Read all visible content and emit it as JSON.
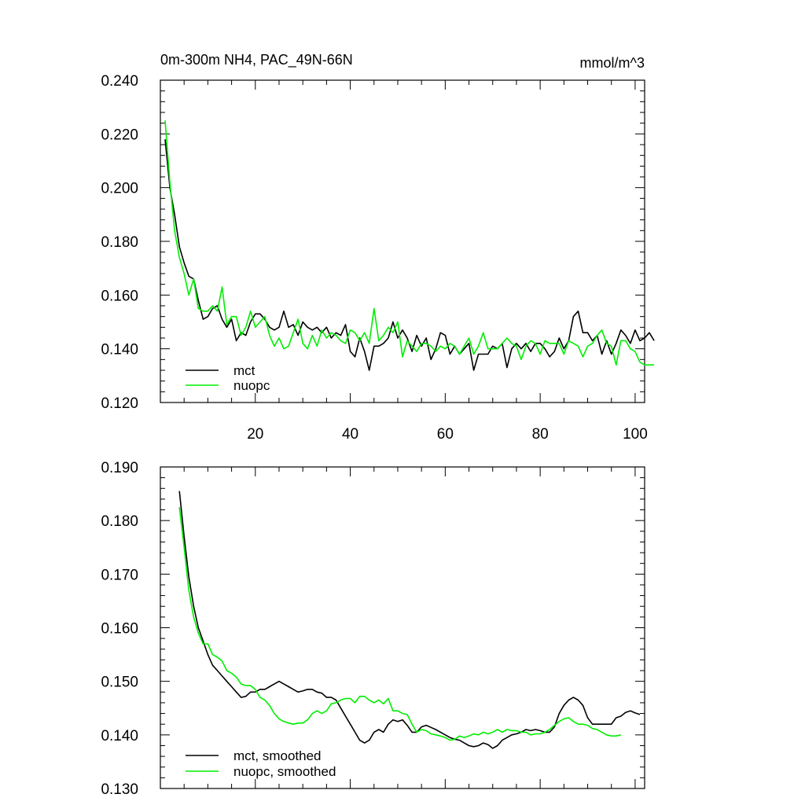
{
  "chart_data": [
    {
      "type": "line",
      "title": "0m-300m NH4, PAC_49N-66N",
      "units_label": "mmol/m^3",
      "xlim": [
        0,
        102
      ],
      "ylim": [
        0.12,
        0.24
      ],
      "yticks": [
        "0.120",
        "0.140",
        "0.160",
        "0.180",
        "0.200",
        "0.220",
        "0.240"
      ],
      "ytick_values": [
        0.12,
        0.14,
        0.16,
        0.18,
        0.2,
        0.22,
        0.24
      ],
      "xticks": [
        "20",
        "40",
        "60",
        "80",
        "100"
      ],
      "xtick_values": [
        20,
        40,
        60,
        80,
        100
      ],
      "legend": [
        "mct",
        "nuopc"
      ],
      "series": [
        {
          "name": "mct",
          "color": "#000000",
          "x_start": 1,
          "values": [
            0.218,
            0.2,
            0.19,
            0.178,
            0.172,
            0.167,
            0.166,
            0.158,
            0.151,
            0.152,
            0.155,
            0.156,
            0.151,
            0.148,
            0.151,
            0.143,
            0.146,
            0.145,
            0.15,
            0.153,
            0.153,
            0.151,
            0.148,
            0.147,
            0.148,
            0.154,
            0.148,
            0.149,
            0.145,
            0.15,
            0.148,
            0.147,
            0.148,
            0.146,
            0.148,
            0.144,
            0.146,
            0.145,
            0.149,
            0.139,
            0.137,
            0.144,
            0.139,
            0.132,
            0.141,
            0.141,
            0.142,
            0.144,
            0.15,
            0.144,
            0.147,
            0.144,
            0.139,
            0.145,
            0.141,
            0.144,
            0.136,
            0.14,
            0.146,
            0.145,
            0.138,
            0.141,
            0.138,
            0.14,
            0.142,
            0.132,
            0.138,
            0.138,
            0.138,
            0.141,
            0.14,
            0.142,
            0.133,
            0.14,
            0.142,
            0.14,
            0.142,
            0.139,
            0.142,
            0.142,
            0.14,
            0.137,
            0.139,
            0.144,
            0.14,
            0.143,
            0.152,
            0.154,
            0.146,
            0.146,
            0.143,
            0.145,
            0.138,
            0.143,
            0.138,
            0.142,
            0.147,
            0.145,
            0.142,
            0.147,
            0.143,
            0.144,
            0.146,
            0.143
          ]
        },
        {
          "name": "nuopc",
          "color": "#00ee00",
          "x_start": 1,
          "values": [
            0.225,
            0.202,
            0.184,
            0.174,
            0.168,
            0.16,
            0.166,
            0.155,
            0.154,
            0.154,
            0.156,
            0.154,
            0.163,
            0.149,
            0.152,
            0.152,
            0.145,
            0.148,
            0.154,
            0.148,
            0.15,
            0.152,
            0.145,
            0.141,
            0.144,
            0.14,
            0.141,
            0.146,
            0.151,
            0.142,
            0.14,
            0.145,
            0.141,
            0.147,
            0.144,
            0.146,
            0.145,
            0.143,
            0.142,
            0.147,
            0.146,
            0.143,
            0.146,
            0.142,
            0.155,
            0.143,
            0.145,
            0.148,
            0.146,
            0.15,
            0.137,
            0.143,
            0.141,
            0.139,
            0.142,
            0.142,
            0.141,
            0.139,
            0.141,
            0.14,
            0.142,
            0.141,
            0.138,
            0.141,
            0.144,
            0.138,
            0.141,
            0.146,
            0.14,
            0.14,
            0.14,
            0.142,
            0.144,
            0.142,
            0.141,
            0.136,
            0.141,
            0.143,
            0.142,
            0.138,
            0.143,
            0.142,
            0.142,
            0.142,
            0.138,
            0.143,
            0.142,
            0.141,
            0.137,
            0.141,
            0.142,
            0.145,
            0.147,
            0.142,
            0.141,
            0.134,
            0.143,
            0.143,
            0.14,
            0.139,
            0.135,
            0.134,
            0.134,
            0.134
          ]
        }
      ]
    },
    {
      "type": "line",
      "title": "",
      "units_label": "",
      "xlim": [
        0,
        102
      ],
      "ylim": [
        0.13,
        0.19
      ],
      "yticks": [
        "0.130",
        "0.140",
        "0.150",
        "0.160",
        "0.170",
        "0.180",
        "0.190"
      ],
      "ytick_values": [
        0.13,
        0.14,
        0.15,
        0.16,
        0.17,
        0.18,
        0.19
      ],
      "xticks": [],
      "xtick_values": [
        20,
        40,
        60,
        80,
        100
      ],
      "legend": [
        "mct, smoothed",
        "nuopc, smoothed"
      ],
      "series": [
        {
          "name": "mct, smoothed",
          "color": "#000000",
          "x_start": 4,
          "values": [
            0.1855,
            0.177,
            0.1695,
            0.164,
            0.16,
            0.1575,
            0.155,
            0.153,
            0.152,
            0.151,
            0.15,
            0.149,
            0.148,
            0.147,
            0.1472,
            0.148,
            0.148,
            0.1485,
            0.1485,
            0.149,
            0.1495,
            0.15,
            0.1495,
            0.149,
            0.1485,
            0.148,
            0.1482,
            0.1485,
            0.1485,
            0.148,
            0.1478,
            0.147,
            0.147,
            0.1465,
            0.145,
            0.1435,
            0.142,
            0.1405,
            0.139,
            0.1385,
            0.139,
            0.1405,
            0.141,
            0.1405,
            0.142,
            0.1428,
            0.1425,
            0.1428,
            0.1418,
            0.1405,
            0.1405,
            0.1415,
            0.1418,
            0.1414,
            0.141,
            0.1405,
            0.14,
            0.1395,
            0.1392,
            0.139,
            0.1385,
            0.138,
            0.1378,
            0.138,
            0.1385,
            0.1382,
            0.1375,
            0.138,
            0.139,
            0.1395,
            0.14,
            0.1402,
            0.1405,
            0.141,
            0.1408,
            0.141,
            0.1408,
            0.1405,
            0.1405,
            0.1415,
            0.144,
            0.1455,
            0.1465,
            0.147,
            0.1465,
            0.1455,
            0.1432,
            0.142,
            0.142,
            0.142,
            0.142,
            0.142,
            0.1432,
            0.1435,
            0.1442,
            0.1445,
            0.1441,
            0.1438
          ]
        },
        {
          "name": "nuopc, smoothed",
          "color": "#00ee00",
          "x_start": 4,
          "values": [
            0.1825,
            0.175,
            0.167,
            0.162,
            0.159,
            0.157,
            0.157,
            0.155,
            0.1545,
            0.1538,
            0.152,
            0.1515,
            0.1508,
            0.1495,
            0.1492,
            0.1492,
            0.1485,
            0.147,
            0.1465,
            0.1455,
            0.144,
            0.143,
            0.1425,
            0.1422,
            0.142,
            0.1422,
            0.1422,
            0.1428,
            0.144,
            0.1445,
            0.144,
            0.1445,
            0.1458,
            0.146,
            0.1465,
            0.1468,
            0.1468,
            0.146,
            0.1472,
            0.1472,
            0.1465,
            0.146,
            0.1465,
            0.1458,
            0.1468,
            0.1445,
            0.1445,
            0.144,
            0.1438,
            0.142,
            0.1405,
            0.141,
            0.1408,
            0.1402,
            0.14,
            0.1398,
            0.1395,
            0.139,
            0.1392,
            0.1398,
            0.1395,
            0.1398,
            0.1402,
            0.14,
            0.1405,
            0.1402,
            0.1405,
            0.141,
            0.1405,
            0.141,
            0.1408,
            0.1408,
            0.1405,
            0.1405,
            0.14,
            0.1402,
            0.1402,
            0.1405,
            0.141,
            0.1418,
            0.1425,
            0.143,
            0.1432,
            0.1425,
            0.142,
            0.142,
            0.1418,
            0.1412,
            0.141,
            0.1405,
            0.14,
            0.1398,
            0.1398,
            0.14
          ]
        }
      ]
    }
  ]
}
